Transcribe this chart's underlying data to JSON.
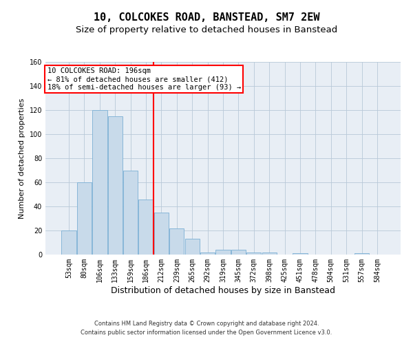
{
  "title": "10, COLCOKES ROAD, BANSTEAD, SM7 2EW",
  "subtitle": "Size of property relative to detached houses in Banstead",
  "xlabel": "Distribution of detached houses by size in Banstead",
  "ylabel": "Number of detached properties",
  "categories": [
    "53sqm",
    "80sqm",
    "106sqm",
    "133sqm",
    "159sqm",
    "186sqm",
    "212sqm",
    "239sqm",
    "265sqm",
    "292sqm",
    "319sqm",
    "345sqm",
    "372sqm",
    "398sqm",
    "425sqm",
    "451sqm",
    "478sqm",
    "504sqm",
    "531sqm",
    "557sqm",
    "584sqm"
  ],
  "values": [
    20,
    60,
    120,
    115,
    70,
    46,
    35,
    22,
    13,
    2,
    4,
    4,
    2,
    2,
    0,
    1,
    0,
    0,
    0,
    1,
    0
  ],
  "bar_color": "#c8daea",
  "bar_edge_color": "#7aafd4",
  "grid_color": "#b8c8d8",
  "background_color": "#e8eef5",
  "vline_x": 5.5,
  "vline_color": "red",
  "annotation_text": "10 COLCOKES ROAD: 196sqm\n← 81% of detached houses are smaller (412)\n18% of semi-detached houses are larger (93) →",
  "annotation_box_color": "white",
  "annotation_box_edge_color": "red",
  "footer_line1": "Contains HM Land Registry data © Crown copyright and database right 2024.",
  "footer_line2": "Contains public sector information licensed under the Open Government Licence v3.0.",
  "ylim": [
    0,
    160
  ],
  "title_fontsize": 11,
  "subtitle_fontsize": 9.5,
  "tick_fontsize": 7,
  "ylabel_fontsize": 8,
  "xlabel_fontsize": 9,
  "annotation_fontsize": 7.5,
  "footer_fontsize": 6
}
